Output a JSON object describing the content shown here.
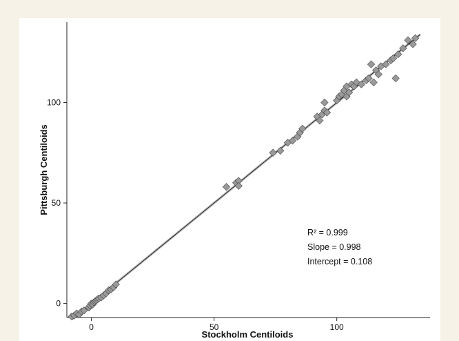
{
  "chart_data": {
    "type": "scatter",
    "xlabel": "Stockholm Centiloids",
    "ylabel": "Pittsburgh Centiloids",
    "xlim": [
      -10,
      138
    ],
    "ylim": [
      -7,
      140
    ],
    "xticks": [
      0,
      50,
      100
    ],
    "yticks": [
      0,
      50,
      100
    ],
    "annotations": [
      {
        "label": "R² = 0.999"
      },
      {
        "label": "Slope = 0.998"
      },
      {
        "label": "Intercept = 0.108"
      }
    ],
    "fit_line": {
      "slope": 0.998,
      "intercept": 0.108,
      "x_range": [
        -8,
        134
      ]
    },
    "marker": {
      "shape": "diamond",
      "fill": "#9a9a9a",
      "stroke": "#444444"
    },
    "points": [
      [
        -8,
        -6.5
      ],
      [
        -7,
        -6
      ],
      [
        -6,
        -5
      ],
      [
        -5,
        -5.5
      ],
      [
        -4,
        -4
      ],
      [
        -3,
        -3.5
      ],
      [
        -1,
        -2
      ],
      [
        -0.5,
        -1
      ],
      [
        0,
        0
      ],
      [
        0.5,
        -0.5
      ],
      [
        1,
        0.5
      ],
      [
        1.5,
        1
      ],
      [
        2,
        1.5
      ],
      [
        2.5,
        2
      ],
      [
        3,
        2.5
      ],
      [
        4,
        3
      ],
      [
        5,
        4
      ],
      [
        6,
        5
      ],
      [
        7,
        6.5
      ],
      [
        8,
        7
      ],
      [
        9,
        8
      ],
      [
        10,
        9.5
      ],
      [
        55,
        58
      ],
      [
        59,
        60
      ],
      [
        60,
        61
      ],
      [
        60,
        58.5
      ],
      [
        74,
        75
      ],
      [
        77,
        76
      ],
      [
        80,
        80
      ],
      [
        82,
        81
      ],
      [
        84,
        83
      ],
      [
        85,
        85
      ],
      [
        86,
        87
      ],
      [
        92,
        93
      ],
      [
        93,
        91
      ],
      [
        94,
        94
      ],
      [
        95,
        96
      ],
      [
        95,
        100
      ],
      [
        96,
        95
      ],
      [
        100,
        101
      ],
      [
        101,
        103
      ],
      [
        102,
        104
      ],
      [
        103,
        106
      ],
      [
        104,
        103
      ],
      [
        104,
        108
      ],
      [
        105,
        105
      ],
      [
        106,
        109
      ],
      [
        107,
        108
      ],
      [
        108,
        110
      ],
      [
        110,
        109
      ],
      [
        112,
        111
      ],
      [
        113,
        112
      ],
      [
        114,
        119
      ],
      [
        115,
        110
      ],
      [
        116,
        116
      ],
      [
        117,
        114
      ],
      [
        118,
        118
      ],
      [
        120,
        119
      ],
      [
        122,
        121
      ],
      [
        123,
        122
      ],
      [
        124,
        112
      ],
      [
        125,
        124
      ],
      [
        127,
        127
      ],
      [
        129,
        131
      ],
      [
        131,
        129
      ],
      [
        132,
        132
      ]
    ]
  }
}
